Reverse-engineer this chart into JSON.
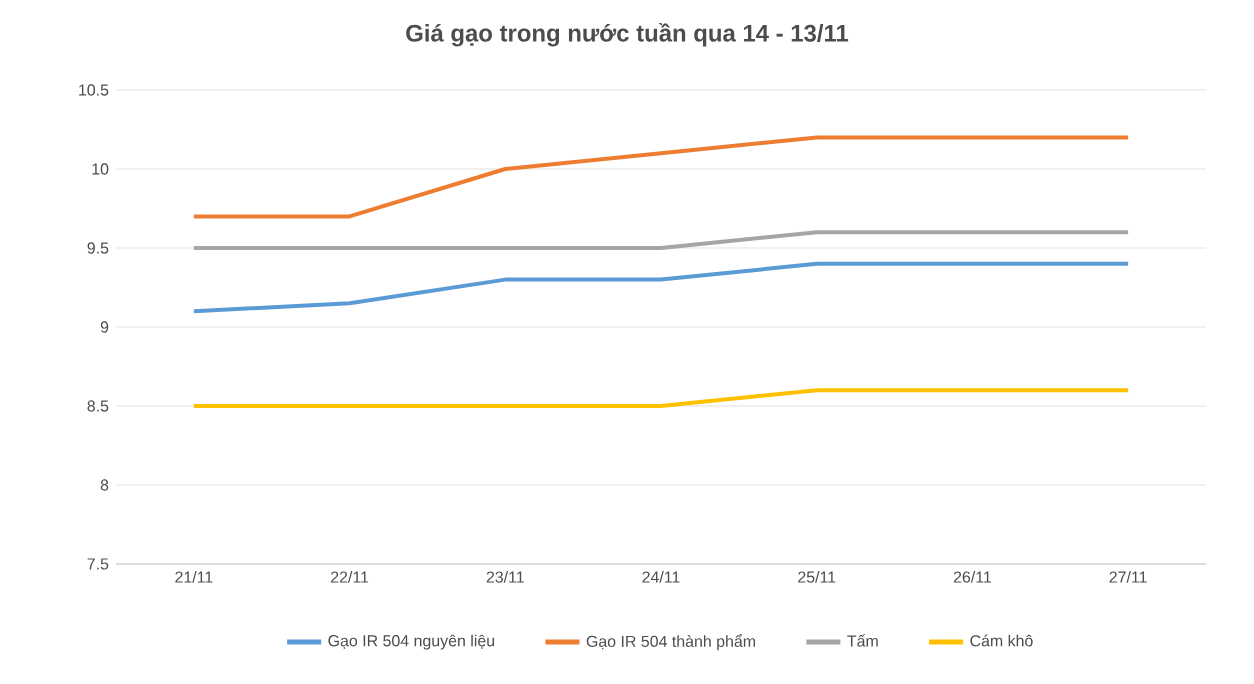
{
  "chart_data": {
    "type": "line",
    "title": "Giá gạo trong nước tuần qua 14 - 13/11",
    "categories": [
      "21/11",
      "22/11",
      "23/11",
      "24/11",
      "25/11",
      "26/11",
      "27/11"
    ],
    "series": [
      {
        "name": "Gạo IR 504 nguyên liệu",
        "color": "#5b9bd5",
        "values": [
          9.1,
          9.15,
          9.3,
          9.3,
          9.4,
          9.4,
          9.4
        ]
      },
      {
        "name": "Gạo IR 504 thành phẩm",
        "color": "#ed7d31",
        "values": [
          9.7,
          9.7,
          10.0,
          10.1,
          10.2,
          10.2,
          10.2
        ]
      },
      {
        "name": "Tấm",
        "color": "#a5a5a5",
        "values": [
          9.5,
          9.5,
          9.5,
          9.5,
          9.6,
          9.6,
          9.6
        ]
      },
      {
        "name": "Cám khô",
        "color": "#ffc000",
        "values": [
          8.5,
          8.5,
          8.5,
          8.5,
          8.6,
          8.6,
          8.6
        ]
      }
    ],
    "ylim": [
      7.5,
      10.5
    ],
    "yticks": [
      7.5,
      8,
      8.5,
      9,
      9.5,
      10,
      10.5
    ],
    "grid": "y",
    "legend": "bottom",
    "marker": "none",
    "line_style": "solid"
  }
}
